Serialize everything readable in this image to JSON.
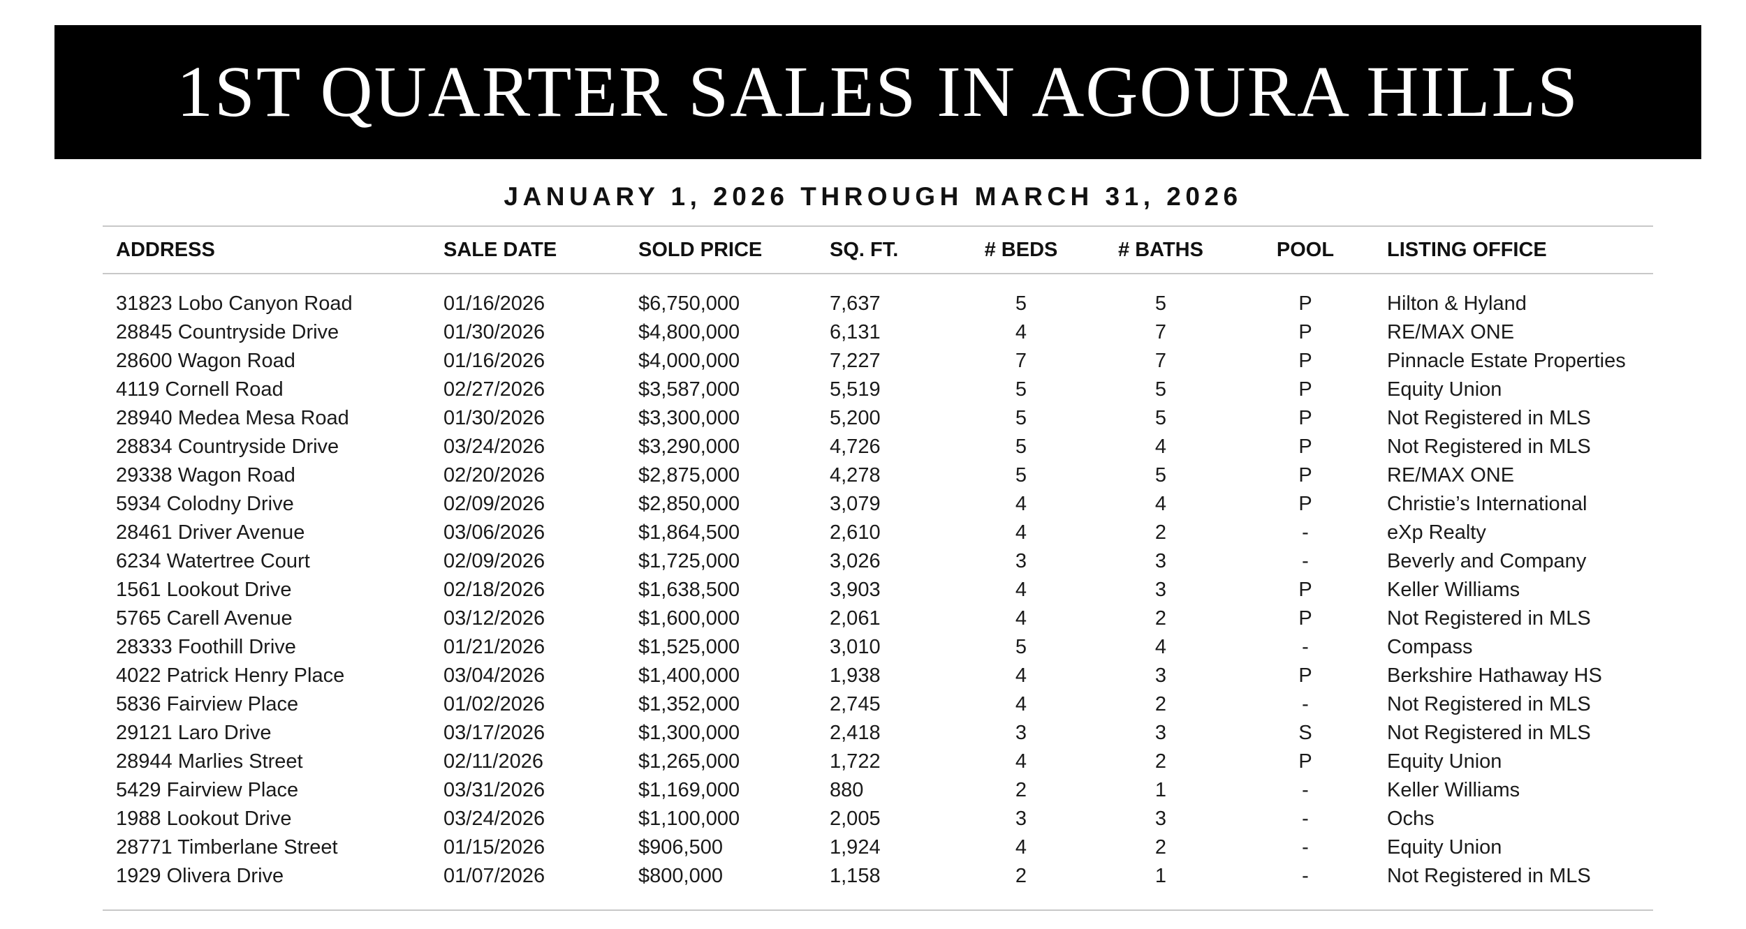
{
  "title": "1ST QUARTER SALES IN AGOURA HILLS",
  "subtitle": "JANUARY 1, 2026 THROUGH MARCH 31, 2026",
  "columns": [
    "ADDRESS",
    "SALE DATE",
    "SOLD PRICE",
    "SQ. FT.",
    "# BEDS",
    "# BATHS",
    "POOL",
    "LISTING OFFICE"
  ],
  "rows": [
    [
      "31823 Lobo Canyon Road",
      "01/16/2026",
      "$6,750,000",
      "7,637",
      "5",
      "5",
      "P",
      "Hilton & Hyland"
    ],
    [
      "28845 Countryside Drive",
      "01/30/2026",
      "$4,800,000",
      "6,131",
      "4",
      "7",
      "P",
      "RE/MAX ONE"
    ],
    [
      "28600 Wagon Road",
      "01/16/2026",
      "$4,000,000",
      "7,227",
      "7",
      "7",
      "P",
      "Pinnacle Estate Properties"
    ],
    [
      "4119 Cornell Road",
      "02/27/2026",
      "$3,587,000",
      "5,519",
      "5",
      "5",
      "P",
      "Equity Union"
    ],
    [
      "28940 Medea Mesa Road",
      "01/30/2026",
      "$3,300,000",
      "5,200",
      "5",
      "5",
      "P",
      "Not Registered in MLS"
    ],
    [
      "28834 Countryside Drive",
      "03/24/2026",
      "$3,290,000",
      "4,726",
      "5",
      "4",
      "P",
      "Not Registered in MLS"
    ],
    [
      "29338 Wagon Road",
      "02/20/2026",
      "$2,875,000",
      "4,278",
      "5",
      "5",
      "P",
      "RE/MAX ONE"
    ],
    [
      "5934 Colodny Drive",
      "02/09/2026",
      "$2,850,000",
      "3,079",
      "4",
      "4",
      "P",
      "Christie’s International"
    ],
    [
      "28461 Driver Avenue",
      "03/06/2026",
      "$1,864,500",
      "2,610",
      "4",
      "2",
      "-",
      "eXp Realty"
    ],
    [
      "6234 Watertree Court",
      "02/09/2026",
      "$1,725,000",
      "3,026",
      "3",
      "3",
      "-",
      "Beverly and Company"
    ],
    [
      "1561 Lookout Drive",
      "02/18/2026",
      "$1,638,500",
      "3,903",
      "4",
      "3",
      "P",
      "Keller Williams"
    ],
    [
      "5765 Carell Avenue",
      "03/12/2026",
      "$1,600,000",
      "2,061",
      "4",
      "2",
      "P",
      "Not Registered in MLS"
    ],
    [
      "28333 Foothill Drive",
      "01/21/2026",
      "$1,525,000",
      "3,010",
      "5",
      "4",
      "-",
      "Compass"
    ],
    [
      "4022 Patrick Henry Place",
      "03/04/2026",
      "$1,400,000",
      "1,938",
      "4",
      "3",
      "P",
      "Berkshire Hathaway HS"
    ],
    [
      "5836 Fairview Place",
      "01/02/2026",
      "$1,352,000",
      "2,745",
      "4",
      "2",
      "-",
      "Not Registered in MLS"
    ],
    [
      "29121 Laro Drive",
      "03/17/2026",
      "$1,300,000",
      "2,418",
      "3",
      "3",
      "S",
      "Not Registered in MLS"
    ],
    [
      "28944 Marlies Street",
      "02/11/2026",
      "$1,265,000",
      "1,722",
      "4",
      "2",
      "P",
      "Equity Union"
    ],
    [
      "5429 Fairview Place",
      "03/31/2026",
      "$1,169,000",
      "880",
      "2",
      "1",
      "-",
      "Keller Williams"
    ],
    [
      "1988 Lookout Drive",
      "03/24/2026",
      "$1,100,000",
      "2,005",
      "3",
      "3",
      "-",
      "Ochs"
    ],
    [
      "28771 Timberlane Street",
      "01/15/2026",
      "$906,500",
      "1,924",
      "4",
      "2",
      "-",
      "Equity Union"
    ],
    [
      "1929 Olivera Drive",
      "01/07/2026",
      "$800,000",
      "1,158",
      "2",
      "1",
      "-",
      "Not Registered in MLS"
    ]
  ]
}
